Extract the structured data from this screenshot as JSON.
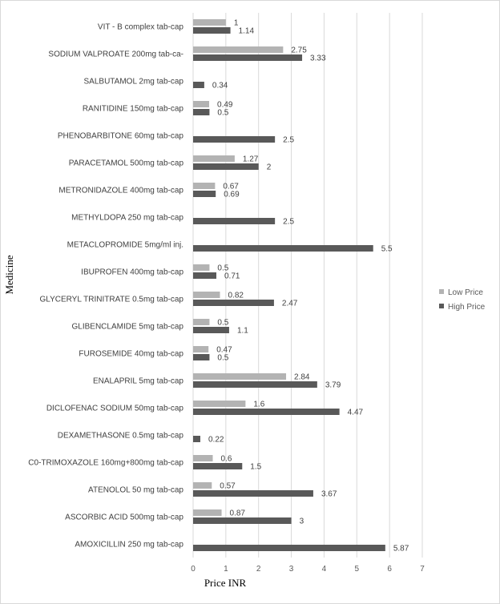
{
  "chart_data": {
    "type": "bar",
    "orientation": "horizontal",
    "xlabel": "Price INR",
    "ylabel": "Medicine",
    "xlim": [
      0,
      7
    ],
    "xticks": [
      0,
      1,
      2,
      3,
      4,
      5,
      6,
      7
    ],
    "grid": true,
    "legend_position": "right",
    "categories": [
      "VIT - B complex tab-cap",
      "SODIUM VALPROATE 200mg tab-ca-",
      "SALBUTAMOL 2mg tab-cap",
      "RANITIDINE 150mg tab-cap",
      "PHENOBARBITONE 60mg tab-cap",
      "PARACETAMOL 500mg tab-cap",
      "METRONIDAZOLE 400mg tab-cap",
      "METHYLDOPA 250 mg tab-cap",
      "METACLOPROMIDE 5mg/ml inj.",
      "IBUPROFEN 400mg tab-cap",
      "GLYCERYL TRINITRATE 0.5mg tab-cap",
      "GLIBENCLAMIDE 5mg tab-cap",
      "FUROSEMIDE 40mg tab-cap",
      "ENALAPRIL 5mg tab-cap",
      "DICLOFENAC SODIUM 50mg tab-cap",
      "DEXAMETHASONE 0.5mg tab-cap",
      "C0-TRIMOXAZOLE 160mg+800mg tab-cap",
      "ATENOLOL 50 mg tab-cap",
      "ASCORBIC ACID 500mg tab-cap",
      "AMOXICILLIN 250 mg tab-cap"
    ],
    "series": [
      {
        "name": "Low Price",
        "color": "#b3b3b3",
        "values": [
          1,
          2.75,
          null,
          0.49,
          null,
          1.27,
          0.67,
          null,
          null,
          0.5,
          0.82,
          0.5,
          0.47,
          2.84,
          1.6,
          null,
          0.6,
          0.57,
          0.87,
          null
        ],
        "labels": [
          "1",
          "2.75",
          "",
          "0.49",
          "",
          "1.27",
          "0.67",
          "",
          "",
          "0.5",
          "0.82",
          "0.5",
          "0.47",
          "2.84",
          "1.6",
          "",
          "0.6",
          "0.57",
          "0.87",
          ""
        ]
      },
      {
        "name": "High Price",
        "color": "#595959",
        "values": [
          1.14,
          3.33,
          0.34,
          0.5,
          2.5,
          2,
          0.69,
          2.5,
          5.5,
          0.71,
          2.47,
          1.1,
          0.5,
          3.79,
          4.47,
          0.22,
          1.5,
          3.67,
          3,
          5.87
        ],
        "labels": [
          "1.14",
          "3.33",
          "0.34",
          "0.5",
          "2.5",
          "2",
          "0.69",
          "2.5",
          "5.5",
          "0.71",
          "2.47",
          "1.1",
          "0.5",
          "3.79",
          "4.47",
          "0.22",
          "1.5",
          "3.67",
          "3",
          "5.87"
        ]
      }
    ]
  }
}
